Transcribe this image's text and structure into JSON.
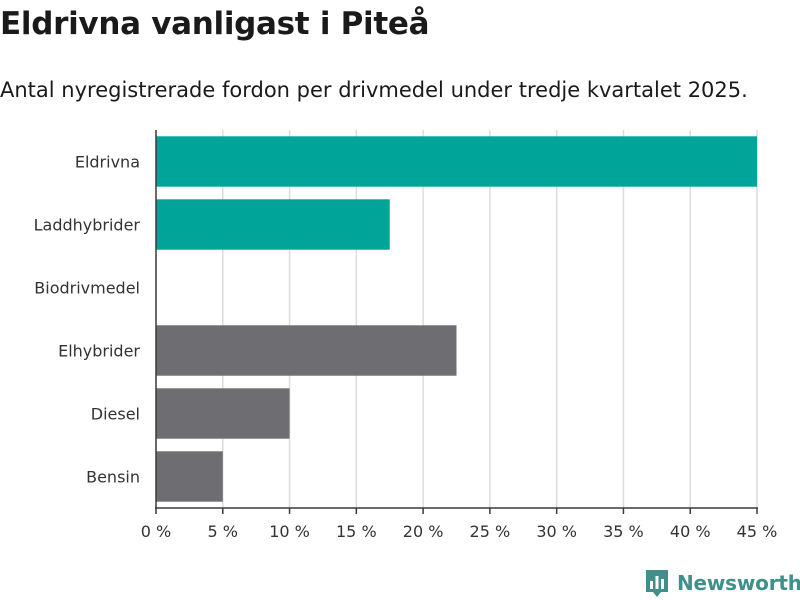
{
  "header": {
    "title": "Eldrivna vanligast i Piteå",
    "subtitle": "Antal nyregistrerade fordon per drivmedel under tredje kvartalet 2025."
  },
  "chart_data": {
    "type": "bar",
    "orientation": "horizontal",
    "title": "Eldrivna vanligast i Piteå",
    "subtitle": "Antal nyregistrerade fordon per drivmedel under tredje kvartalet 2025.",
    "categories": [
      "Eldrivna",
      "Laddhybrider",
      "Biodrivmedel",
      "Elhybrider",
      "Diesel",
      "Bensin"
    ],
    "values": [
      45,
      17.5,
      0,
      22.5,
      10,
      5
    ],
    "bar_colors": [
      "#00a498",
      "#00a498",
      "#00a498",
      "#6e6d72",
      "#6e6d72",
      "#6e6d72"
    ],
    "xlim": [
      0,
      45
    ],
    "xticks": [
      0,
      5,
      10,
      15,
      20,
      25,
      30,
      35,
      40,
      45
    ],
    "tick_labels": [
      "0 %",
      "5 %",
      "10 %",
      "15 %",
      "20 %",
      "25 %",
      "30 %",
      "35 %",
      "40 %",
      "45 %"
    ],
    "unit": "%",
    "grid": true,
    "xlabel": "",
    "ylabel": ""
  },
  "brand": {
    "name": "Newsworthy",
    "color": "#3f8f8a",
    "logo_icon": "bar-chart-icon"
  }
}
